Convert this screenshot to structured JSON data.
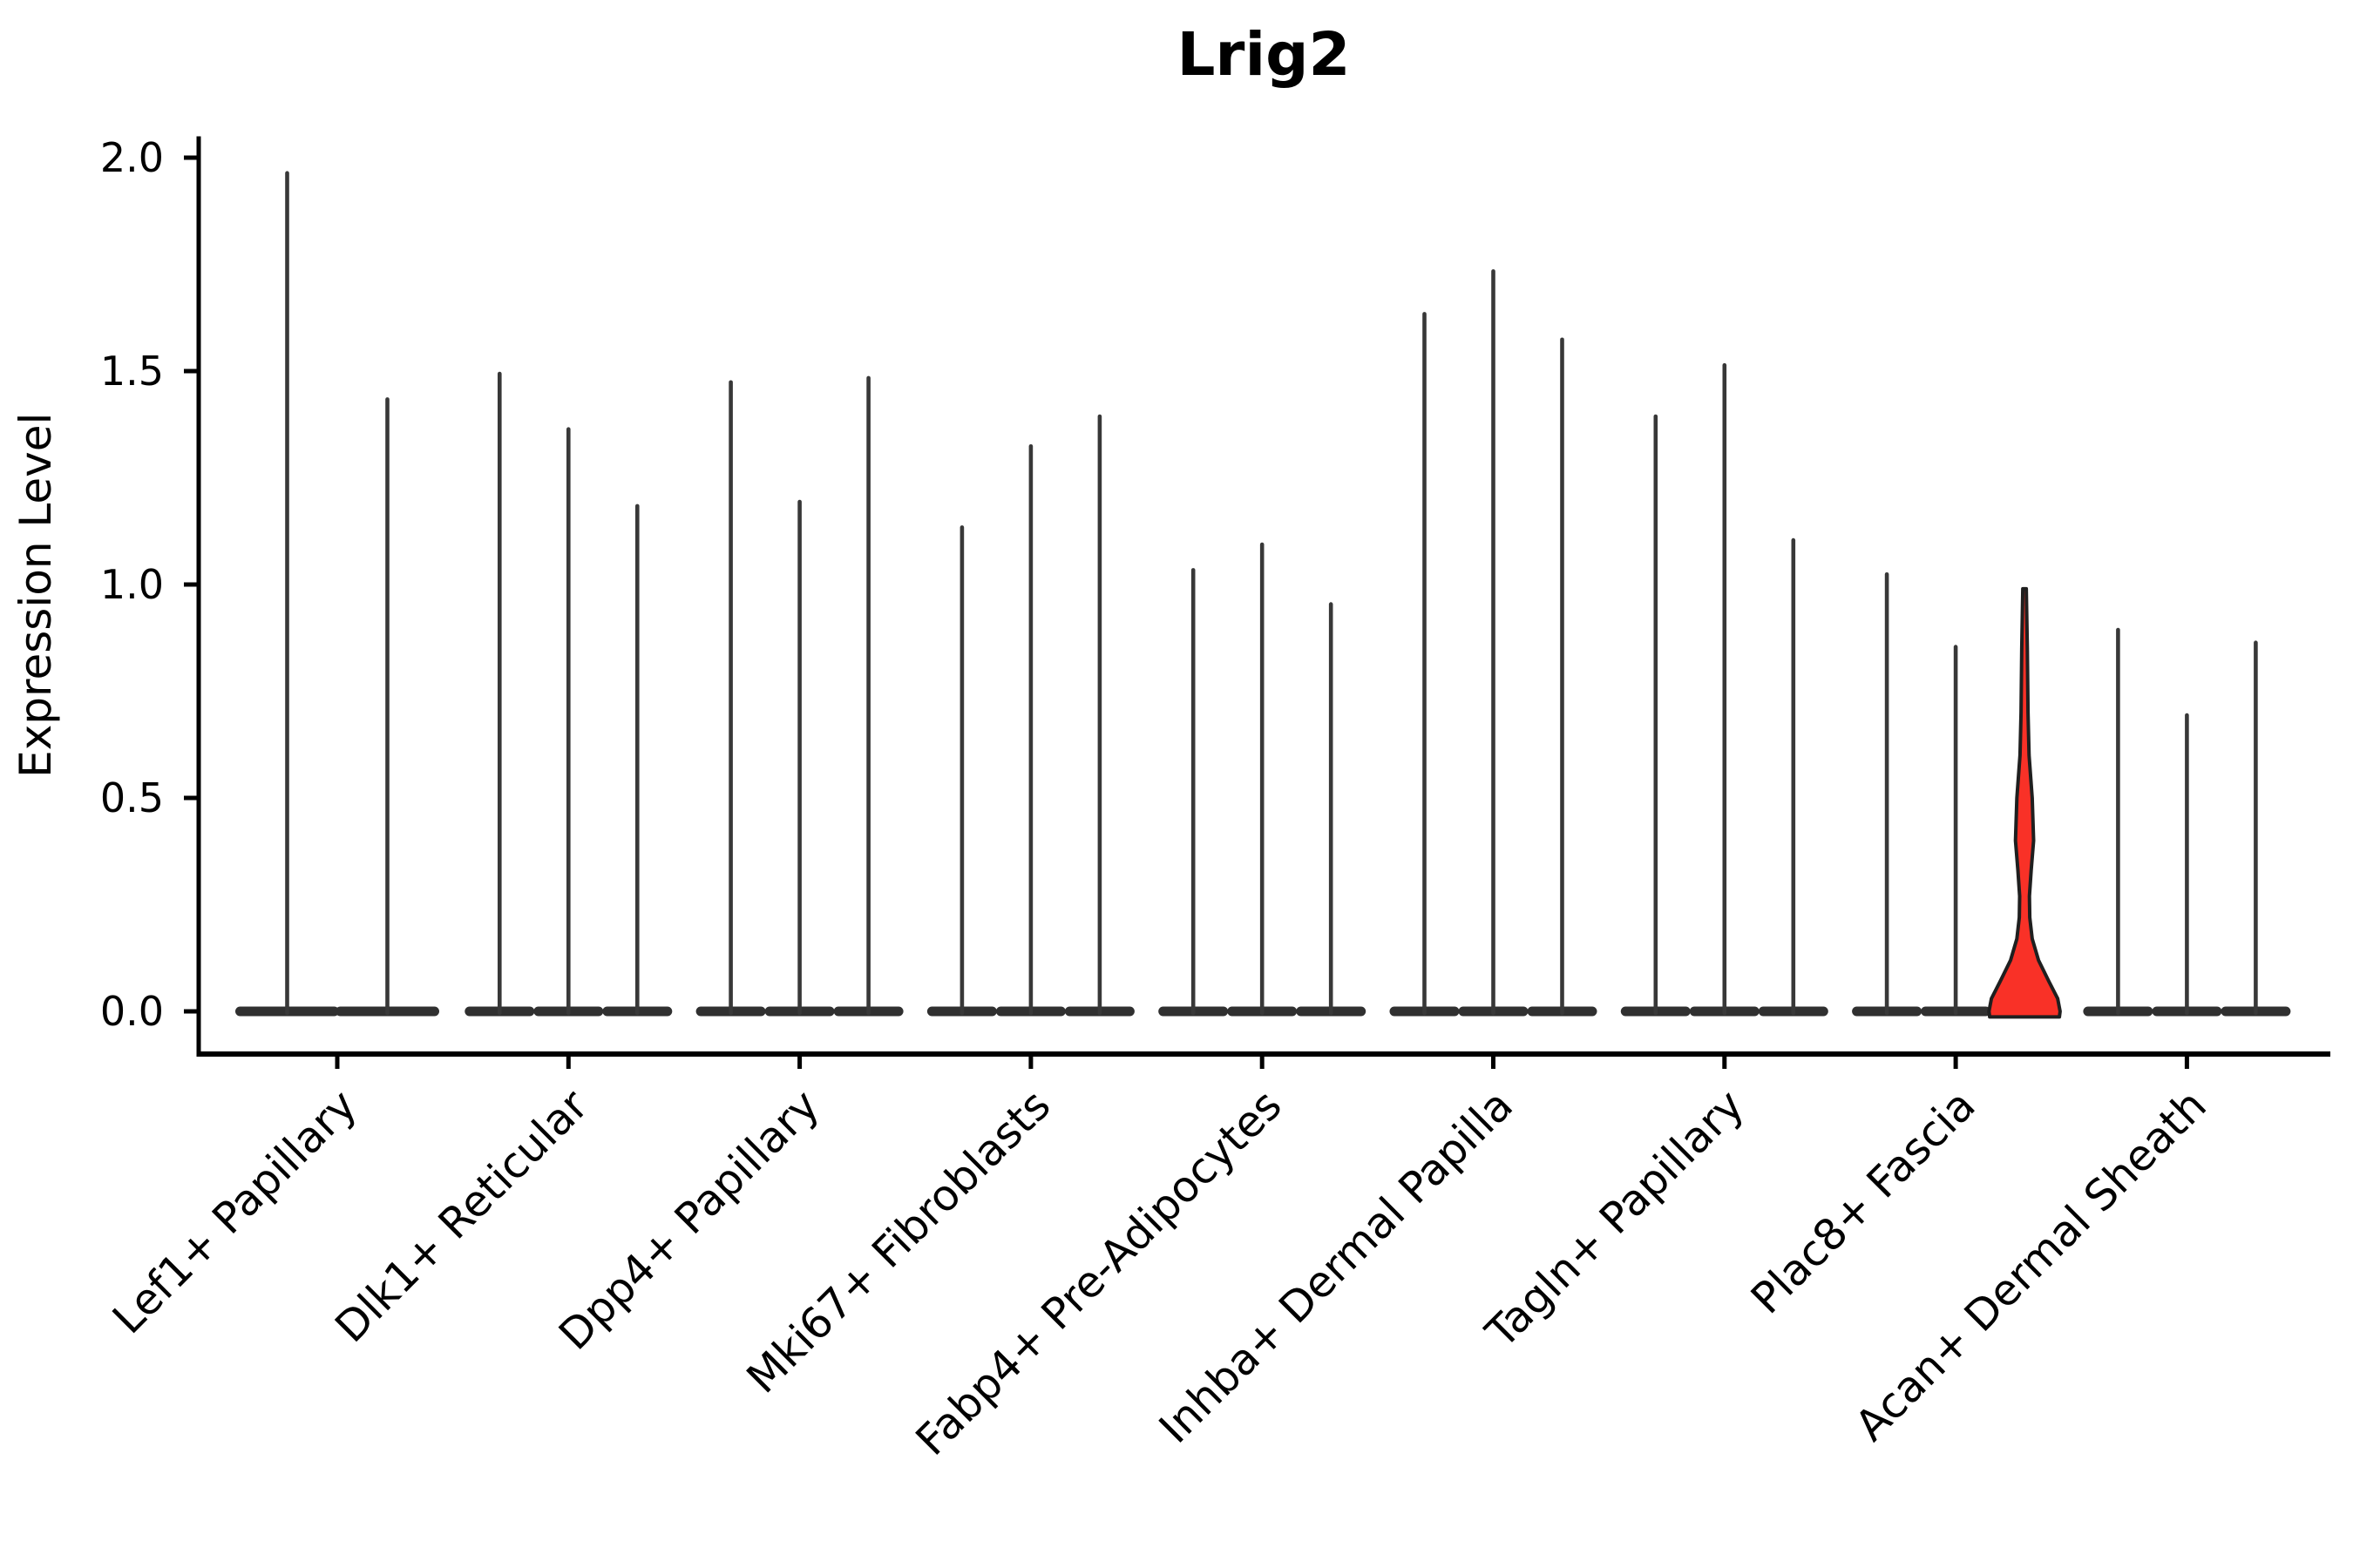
{
  "chart_data": {
    "type": "violin",
    "title": "Lrig2",
    "ylabel": "Expression Level",
    "xlabel": "",
    "yticks": [
      "0.0",
      "0.5",
      "1.0",
      "1.5",
      "2.0"
    ],
    "ytick_values": [
      0.0,
      0.5,
      1.0,
      1.5,
      2.0
    ],
    "ylim": [
      -0.1,
      2.05
    ],
    "grid": false,
    "legend": "none",
    "colors": {
      "violin": "#383838",
      "violin_base": "#303030",
      "highlight_fill": "#f93127",
      "highlight_outline": "#1f1f1f",
      "axis": "#000000",
      "text": "#000000"
    },
    "categories": [
      "Lef1+ Papillary",
      "Dlk1+ Reticular",
      "Dpp4+ Papillary",
      "Mki67+ Fibroblasts",
      "Fabp4+ Pre-Adipocytes",
      "Inhba+ Dermal Papilla",
      "Tagln+ Papillary",
      "Plac8+ Fascia",
      "Acan+ Dermal Sheath"
    ],
    "groups": [
      {
        "label": "Lef1+ Papillary",
        "violins": [
          {
            "peak": 1.97
          },
          {
            "peak": 1.44
          }
        ]
      },
      {
        "label": "Dlk1+ Reticular",
        "violins": [
          {
            "peak": 1.5
          },
          {
            "peak": 1.37
          },
          {
            "peak": 1.19
          }
        ]
      },
      {
        "label": "Dpp4+ Papillary",
        "violins": [
          {
            "peak": 1.48
          },
          {
            "peak": 1.2
          },
          {
            "peak": 1.49
          }
        ]
      },
      {
        "label": "Mki67+ Fibroblasts",
        "violins": [
          {
            "peak": 1.14
          },
          {
            "peak": 1.33
          },
          {
            "peak": 1.4
          }
        ]
      },
      {
        "label": "Fabp4+ Pre-Adipocytes",
        "violins": [
          {
            "peak": 1.04
          },
          {
            "peak": 1.1
          },
          {
            "peak": 0.96
          }
        ]
      },
      {
        "label": "Inhba+ Dermal Papilla",
        "violins": [
          {
            "peak": 1.64
          },
          {
            "peak": 1.74
          },
          {
            "peak": 1.58
          }
        ]
      },
      {
        "label": "Tagln+ Papillary",
        "violins": [
          {
            "peak": 1.4
          },
          {
            "peak": 1.52
          },
          {
            "peak": 1.11
          }
        ]
      },
      {
        "label": "Plac8+ Fascia",
        "violins": [
          {
            "peak": 1.03
          },
          {
            "peak": 0.86
          },
          {
            "peak": 0.99,
            "highlight": true,
            "profile": [
              [
                0.99,
                0.05
              ],
              [
                0.85,
                0.08
              ],
              [
                0.7,
                0.1
              ],
              [
                0.6,
                0.13
              ],
              [
                0.5,
                0.22
              ],
              [
                0.4,
                0.26
              ],
              [
                0.33,
                0.19
              ],
              [
                0.27,
                0.14
              ],
              [
                0.22,
                0.15
              ],
              [
                0.17,
                0.22
              ],
              [
                0.12,
                0.4
              ],
              [
                0.07,
                0.7
              ],
              [
                0.03,
                0.95
              ],
              [
                0.0,
                1.02
              ],
              [
                -0.013,
                1.0
              ]
            ]
          }
        ]
      },
      {
        "label": "Acan+ Dermal Sheath",
        "violins": [
          {
            "peak": 0.9
          },
          {
            "peak": 0.7
          },
          {
            "peak": 0.87
          }
        ]
      }
    ]
  }
}
